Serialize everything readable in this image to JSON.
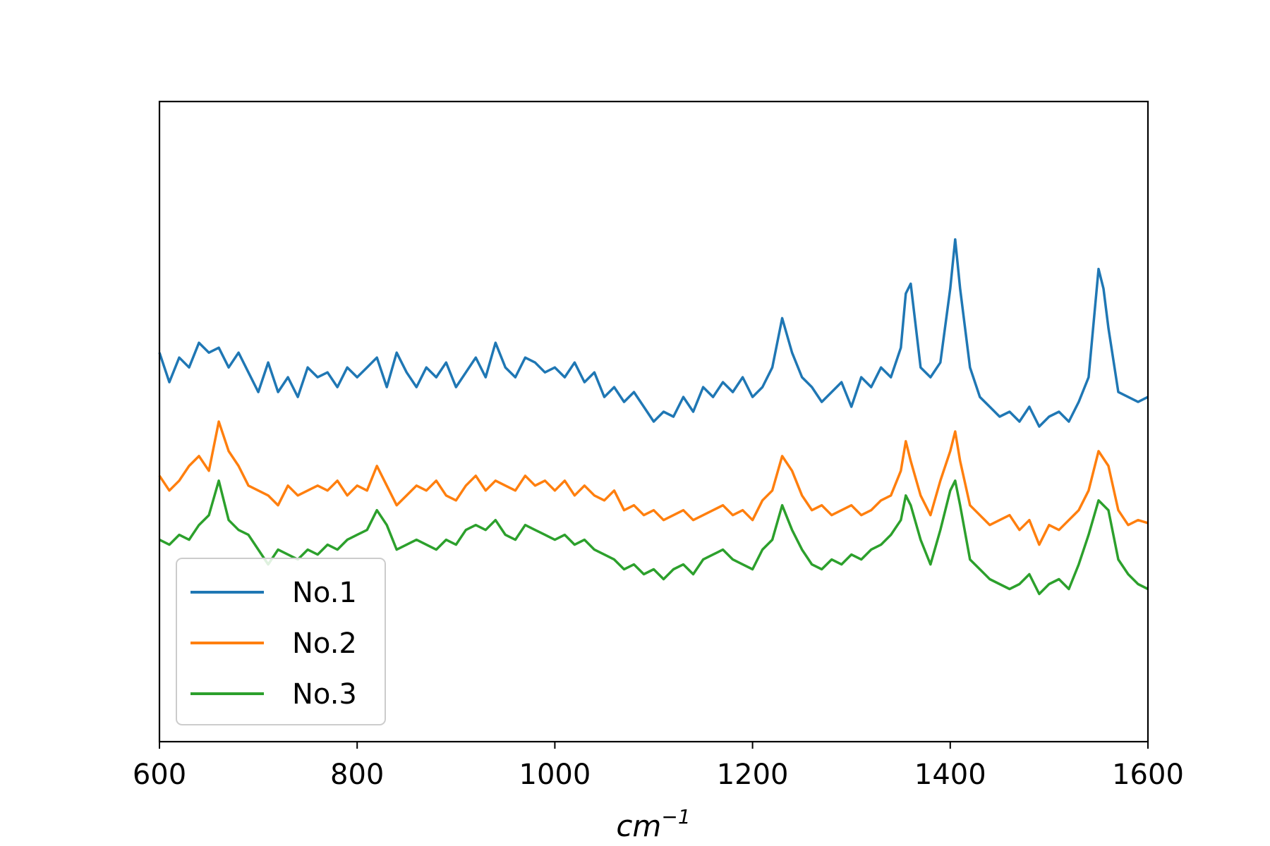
{
  "chart_data": {
    "type": "line",
    "xlabel_base": "cm",
    "xlabel_exp": "−1",
    "xlim": [
      600,
      1600
    ],
    "ylim": [
      -0.5,
      6.0
    ],
    "x_ticks": [
      600,
      800,
      1000,
      1200,
      1400,
      1600
    ],
    "x_tick_labels": [
      "600",
      "800",
      "1000",
      "1200",
      "1400",
      "1600"
    ],
    "y_ticks_visible": false,
    "grid": false,
    "legend_position": "lower-left",
    "series": [
      {
        "name": "No.1",
        "color": "#1f77b4",
        "points": [
          [
            600,
            3.45
          ],
          [
            610,
            3.15
          ],
          [
            620,
            3.4
          ],
          [
            630,
            3.3
          ],
          [
            640,
            3.55
          ],
          [
            650,
            3.45
          ],
          [
            660,
            3.5
          ],
          [
            670,
            3.3
          ],
          [
            680,
            3.45
          ],
          [
            690,
            3.25
          ],
          [
            700,
            3.05
          ],
          [
            710,
            3.35
          ],
          [
            720,
            3.05
          ],
          [
            730,
            3.2
          ],
          [
            740,
            3.0
          ],
          [
            750,
            3.3
          ],
          [
            760,
            3.2
          ],
          [
            770,
            3.25
          ],
          [
            780,
            3.1
          ],
          [
            790,
            3.3
          ],
          [
            800,
            3.2
          ],
          [
            810,
            3.3
          ],
          [
            820,
            3.4
          ],
          [
            830,
            3.1
          ],
          [
            840,
            3.45
          ],
          [
            850,
            3.25
          ],
          [
            860,
            3.1
          ],
          [
            870,
            3.3
          ],
          [
            880,
            3.2
          ],
          [
            890,
            3.35
          ],
          [
            900,
            3.1
          ],
          [
            910,
            3.25
          ],
          [
            920,
            3.4
          ],
          [
            930,
            3.2
          ],
          [
            940,
            3.55
          ],
          [
            950,
            3.3
          ],
          [
            960,
            3.2
          ],
          [
            970,
            3.4
          ],
          [
            980,
            3.35
          ],
          [
            990,
            3.25
          ],
          [
            1000,
            3.3
          ],
          [
            1010,
            3.2
          ],
          [
            1020,
            3.35
          ],
          [
            1030,
            3.15
          ],
          [
            1040,
            3.25
          ],
          [
            1050,
            3.0
          ],
          [
            1060,
            3.1
          ],
          [
            1070,
            2.95
          ],
          [
            1080,
            3.05
          ],
          [
            1090,
            2.9
          ],
          [
            1100,
            2.75
          ],
          [
            1110,
            2.85
          ],
          [
            1120,
            2.8
          ],
          [
            1130,
            3.0
          ],
          [
            1140,
            2.85
          ],
          [
            1150,
            3.1
          ],
          [
            1160,
            3.0
          ],
          [
            1170,
            3.15
          ],
          [
            1180,
            3.05
          ],
          [
            1190,
            3.2
          ],
          [
            1200,
            3.0
          ],
          [
            1210,
            3.1
          ],
          [
            1220,
            3.3
          ],
          [
            1230,
            3.8
          ],
          [
            1240,
            3.45
          ],
          [
            1250,
            3.2
          ],
          [
            1260,
            3.1
          ],
          [
            1270,
            2.95
          ],
          [
            1280,
            3.05
          ],
          [
            1290,
            3.15
          ],
          [
            1300,
            2.9
          ],
          [
            1310,
            3.2
          ],
          [
            1320,
            3.1
          ],
          [
            1330,
            3.3
          ],
          [
            1340,
            3.2
          ],
          [
            1350,
            3.5
          ],
          [
            1355,
            4.05
          ],
          [
            1360,
            4.15
          ],
          [
            1370,
            3.3
          ],
          [
            1380,
            3.2
          ],
          [
            1390,
            3.35
          ],
          [
            1400,
            4.1
          ],
          [
            1405,
            4.6
          ],
          [
            1410,
            4.1
          ],
          [
            1420,
            3.3
          ],
          [
            1430,
            3.0
          ],
          [
            1440,
            2.9
          ],
          [
            1450,
            2.8
          ],
          [
            1460,
            2.85
          ],
          [
            1470,
            2.75
          ],
          [
            1480,
            2.9
          ],
          [
            1490,
            2.7
          ],
          [
            1500,
            2.8
          ],
          [
            1510,
            2.85
          ],
          [
            1520,
            2.75
          ],
          [
            1530,
            2.95
          ],
          [
            1540,
            3.2
          ],
          [
            1550,
            4.3
          ],
          [
            1555,
            4.1
          ],
          [
            1560,
            3.7
          ],
          [
            1570,
            3.05
          ],
          [
            1580,
            3.0
          ],
          [
            1590,
            2.95
          ],
          [
            1600,
            3.0
          ]
        ]
      },
      {
        "name": "No.2",
        "color": "#ff7f0e",
        "points": [
          [
            600,
            2.2
          ],
          [
            610,
            2.05
          ],
          [
            620,
            2.15
          ],
          [
            630,
            2.3
          ],
          [
            640,
            2.4
          ],
          [
            650,
            2.25
          ],
          [
            660,
            2.75
          ],
          [
            670,
            2.45
          ],
          [
            680,
            2.3
          ],
          [
            690,
            2.1
          ],
          [
            700,
            2.05
          ],
          [
            710,
            2.0
          ],
          [
            720,
            1.9
          ],
          [
            730,
            2.1
          ],
          [
            740,
            2.0
          ],
          [
            750,
            2.05
          ],
          [
            760,
            2.1
          ],
          [
            770,
            2.05
          ],
          [
            780,
            2.15
          ],
          [
            790,
            2.0
          ],
          [
            800,
            2.1
          ],
          [
            810,
            2.05
          ],
          [
            820,
            2.3
          ],
          [
            830,
            2.1
          ],
          [
            840,
            1.9
          ],
          [
            850,
            2.0
          ],
          [
            860,
            2.1
          ],
          [
            870,
            2.05
          ],
          [
            880,
            2.15
          ],
          [
            890,
            2.0
          ],
          [
            900,
            1.95
          ],
          [
            910,
            2.1
          ],
          [
            920,
            2.2
          ],
          [
            930,
            2.05
          ],
          [
            940,
            2.15
          ],
          [
            950,
            2.1
          ],
          [
            960,
            2.05
          ],
          [
            970,
            2.2
          ],
          [
            980,
            2.1
          ],
          [
            990,
            2.15
          ],
          [
            1000,
            2.05
          ],
          [
            1010,
            2.15
          ],
          [
            1020,
            2.0
          ],
          [
            1030,
            2.1
          ],
          [
            1040,
            2.0
          ],
          [
            1050,
            1.95
          ],
          [
            1060,
            2.05
          ],
          [
            1070,
            1.85
          ],
          [
            1080,
            1.9
          ],
          [
            1090,
            1.8
          ],
          [
            1100,
            1.85
          ],
          [
            1110,
            1.75
          ],
          [
            1120,
            1.8
          ],
          [
            1130,
            1.85
          ],
          [
            1140,
            1.75
          ],
          [
            1150,
            1.8
          ],
          [
            1160,
            1.85
          ],
          [
            1170,
            1.9
          ],
          [
            1180,
            1.8
          ],
          [
            1190,
            1.85
          ],
          [
            1200,
            1.75
          ],
          [
            1210,
            1.95
          ],
          [
            1220,
            2.05
          ],
          [
            1230,
            2.4
          ],
          [
            1240,
            2.25
          ],
          [
            1250,
            2.0
          ],
          [
            1260,
            1.85
          ],
          [
            1270,
            1.9
          ],
          [
            1280,
            1.8
          ],
          [
            1290,
            1.85
          ],
          [
            1300,
            1.9
          ],
          [
            1310,
            1.8
          ],
          [
            1320,
            1.85
          ],
          [
            1330,
            1.95
          ],
          [
            1340,
            2.0
          ],
          [
            1350,
            2.25
          ],
          [
            1355,
            2.55
          ],
          [
            1360,
            2.35
          ],
          [
            1370,
            2.0
          ],
          [
            1380,
            1.8
          ],
          [
            1390,
            2.15
          ],
          [
            1400,
            2.45
          ],
          [
            1405,
            2.65
          ],
          [
            1410,
            2.35
          ],
          [
            1420,
            1.9
          ],
          [
            1430,
            1.8
          ],
          [
            1440,
            1.7
          ],
          [
            1450,
            1.75
          ],
          [
            1460,
            1.8
          ],
          [
            1470,
            1.65
          ],
          [
            1480,
            1.75
          ],
          [
            1490,
            1.5
          ],
          [
            1500,
            1.7
          ],
          [
            1510,
            1.65
          ],
          [
            1520,
            1.75
          ],
          [
            1530,
            1.85
          ],
          [
            1540,
            2.05
          ],
          [
            1550,
            2.45
          ],
          [
            1560,
            2.3
          ],
          [
            1570,
            1.85
          ],
          [
            1580,
            1.7
          ],
          [
            1590,
            1.75
          ],
          [
            1600,
            1.72
          ]
        ]
      },
      {
        "name": "No.3",
        "color": "#2ca02c",
        "points": [
          [
            600,
            1.55
          ],
          [
            610,
            1.5
          ],
          [
            620,
            1.6
          ],
          [
            630,
            1.55
          ],
          [
            640,
            1.7
          ],
          [
            650,
            1.8
          ],
          [
            660,
            2.15
          ],
          [
            670,
            1.75
          ],
          [
            680,
            1.65
          ],
          [
            690,
            1.6
          ],
          [
            700,
            1.45
          ],
          [
            710,
            1.3
          ],
          [
            720,
            1.45
          ],
          [
            730,
            1.4
          ],
          [
            740,
            1.35
          ],
          [
            750,
            1.45
          ],
          [
            760,
            1.4
          ],
          [
            770,
            1.5
          ],
          [
            780,
            1.45
          ],
          [
            790,
            1.55
          ],
          [
            800,
            1.6
          ],
          [
            810,
            1.65
          ],
          [
            820,
            1.85
          ],
          [
            830,
            1.7
          ],
          [
            840,
            1.45
          ],
          [
            850,
            1.5
          ],
          [
            860,
            1.55
          ],
          [
            870,
            1.5
          ],
          [
            880,
            1.45
          ],
          [
            890,
            1.55
          ],
          [
            900,
            1.5
          ],
          [
            910,
            1.65
          ],
          [
            920,
            1.7
          ],
          [
            930,
            1.65
          ],
          [
            940,
            1.75
          ],
          [
            950,
            1.6
          ],
          [
            960,
            1.55
          ],
          [
            970,
            1.7
          ],
          [
            980,
            1.65
          ],
          [
            990,
            1.6
          ],
          [
            1000,
            1.55
          ],
          [
            1010,
            1.6
          ],
          [
            1020,
            1.5
          ],
          [
            1030,
            1.55
          ],
          [
            1040,
            1.45
          ],
          [
            1050,
            1.4
          ],
          [
            1060,
            1.35
          ],
          [
            1070,
            1.25
          ],
          [
            1080,
            1.3
          ],
          [
            1090,
            1.2
          ],
          [
            1100,
            1.25
          ],
          [
            1110,
            1.15
          ],
          [
            1120,
            1.25
          ],
          [
            1130,
            1.3
          ],
          [
            1140,
            1.2
          ],
          [
            1150,
            1.35
          ],
          [
            1160,
            1.4
          ],
          [
            1170,
            1.45
          ],
          [
            1180,
            1.35
          ],
          [
            1190,
            1.3
          ],
          [
            1200,
            1.25
          ],
          [
            1210,
            1.45
          ],
          [
            1220,
            1.55
          ],
          [
            1230,
            1.9
          ],
          [
            1240,
            1.65
          ],
          [
            1250,
            1.45
          ],
          [
            1260,
            1.3
          ],
          [
            1270,
            1.25
          ],
          [
            1280,
            1.35
          ],
          [
            1290,
            1.3
          ],
          [
            1300,
            1.4
          ],
          [
            1310,
            1.35
          ],
          [
            1320,
            1.45
          ],
          [
            1330,
            1.5
          ],
          [
            1340,
            1.6
          ],
          [
            1350,
            1.75
          ],
          [
            1355,
            2.0
          ],
          [
            1360,
            1.9
          ],
          [
            1370,
            1.55
          ],
          [
            1380,
            1.3
          ],
          [
            1390,
            1.65
          ],
          [
            1400,
            2.05
          ],
          [
            1405,
            2.15
          ],
          [
            1410,
            1.9
          ],
          [
            1420,
            1.35
          ],
          [
            1430,
            1.25
          ],
          [
            1440,
            1.15
          ],
          [
            1450,
            1.1
          ],
          [
            1460,
            1.05
          ],
          [
            1470,
            1.1
          ],
          [
            1480,
            1.2
          ],
          [
            1490,
            1.0
          ],
          [
            1500,
            1.1
          ],
          [
            1510,
            1.15
          ],
          [
            1520,
            1.05
          ],
          [
            1530,
            1.3
          ],
          [
            1540,
            1.6
          ],
          [
            1550,
            1.95
          ],
          [
            1560,
            1.85
          ],
          [
            1570,
            1.35
          ],
          [
            1580,
            1.2
          ],
          [
            1590,
            1.1
          ],
          [
            1600,
            1.05
          ]
        ]
      }
    ]
  }
}
